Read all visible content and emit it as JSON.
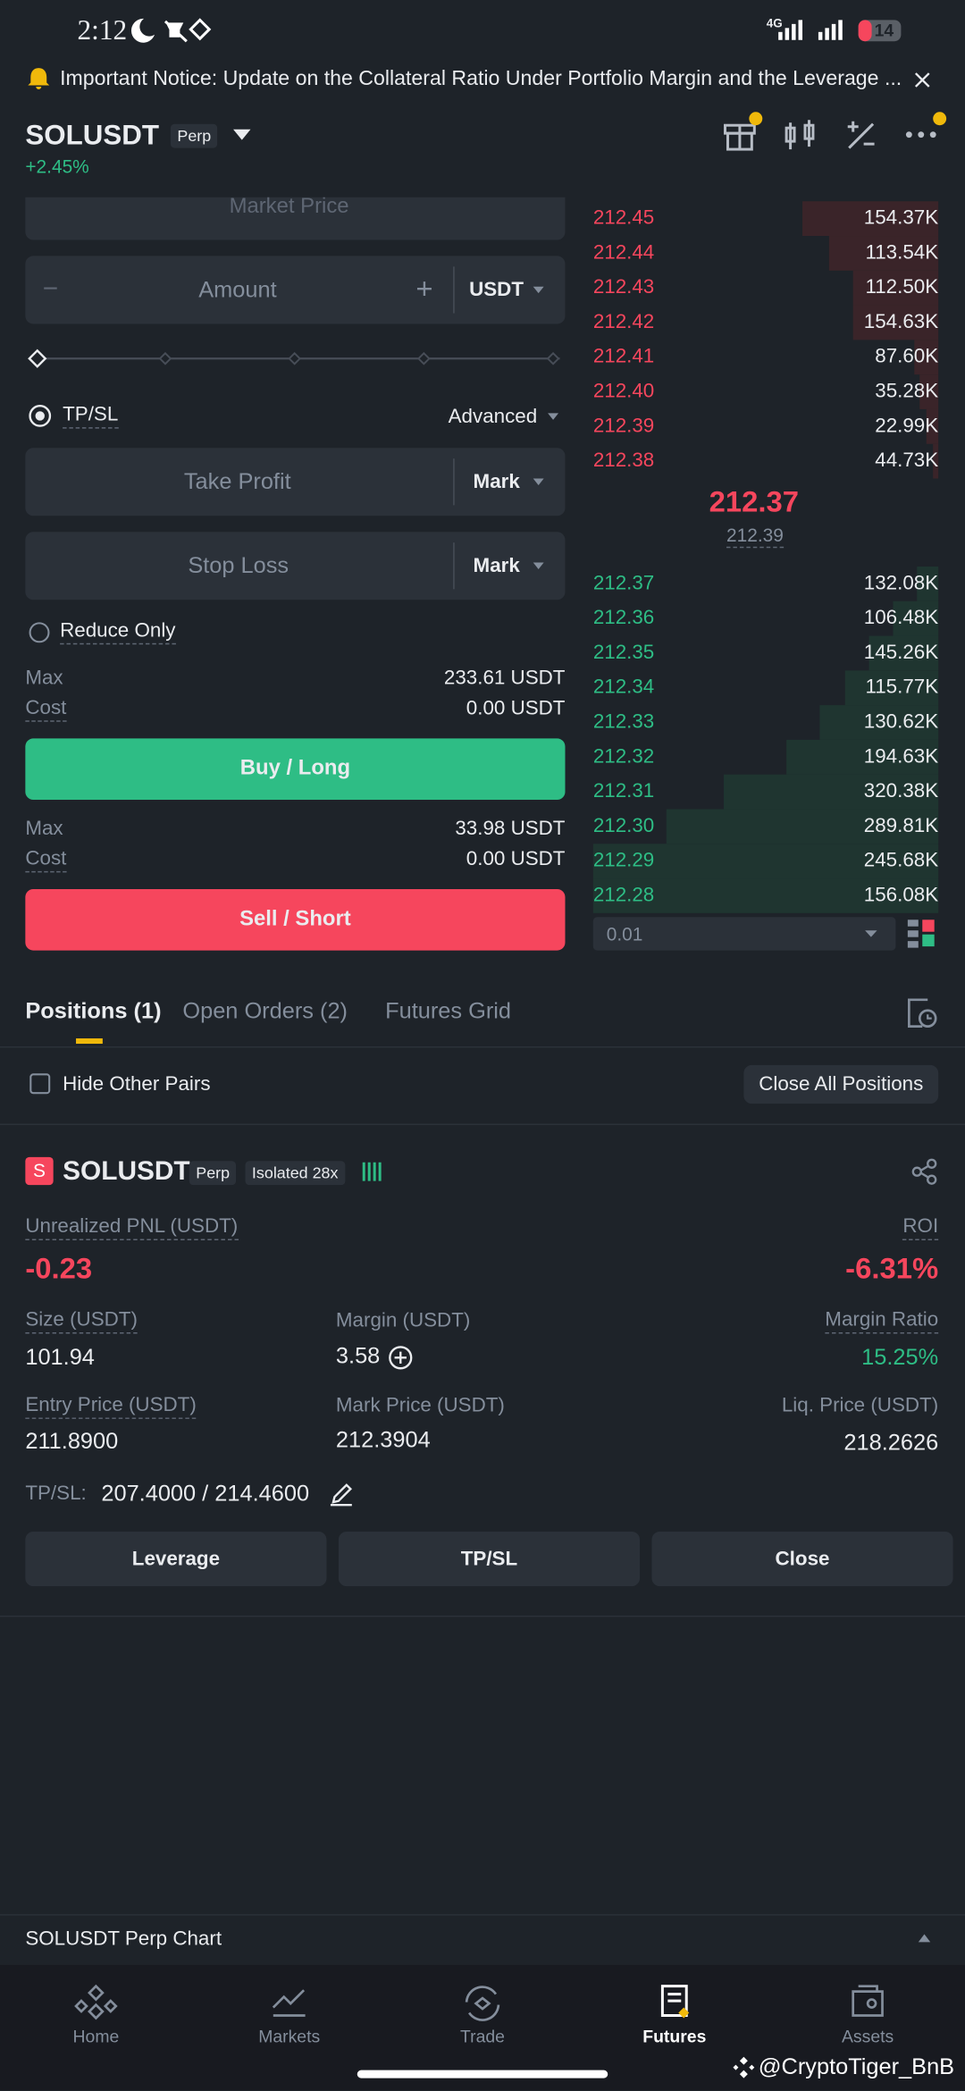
{
  "status_bar": {
    "time": "2:12",
    "network": "4G",
    "battery": "14"
  },
  "notice": {
    "text": "Important Notice: Update on the Collateral Ratio Under Portfolio Margin and the Leverage ..."
  },
  "header": {
    "symbol": "SOLUSDT",
    "badge": "Perp",
    "change": "+2.45%"
  },
  "order_form": {
    "price_type": "Market Price",
    "amount_placeholder": "Amount",
    "amount_unit": "USDT",
    "tpsl_label": "TP/SL",
    "advanced": "Advanced",
    "take_profit": "Take Profit",
    "take_profit_trigger": "Mark",
    "stop_loss": "Stop Loss",
    "stop_loss_trigger": "Mark",
    "reduce_only": "Reduce Only",
    "buy": {
      "max_label": "Max",
      "max_value": "233.61 USDT",
      "cost_label": "Cost",
      "cost_value": "0.00 USDT",
      "button": "Buy / Long"
    },
    "sell": {
      "max_label": "Max",
      "max_value": "33.98 USDT",
      "cost_label": "Cost",
      "cost_value": "0.00 USDT",
      "button": "Sell / Short"
    }
  },
  "order_book": {
    "asks": [
      {
        "price": "212.45",
        "amount": "154.37K"
      },
      {
        "price": "212.44",
        "amount": "113.54K"
      },
      {
        "price": "212.43",
        "amount": "112.50K"
      },
      {
        "price": "212.42",
        "amount": "154.63K"
      },
      {
        "price": "212.41",
        "amount": "87.60K"
      },
      {
        "price": "212.40",
        "amount": "35.28K"
      },
      {
        "price": "212.39",
        "amount": "22.99K"
      },
      {
        "price": "212.38",
        "amount": "44.73K"
      }
    ],
    "last_price": "212.37",
    "mark_price": "212.39",
    "bids": [
      {
        "price": "212.37",
        "amount": "132.08K"
      },
      {
        "price": "212.36",
        "amount": "106.48K"
      },
      {
        "price": "212.35",
        "amount": "145.26K"
      },
      {
        "price": "212.34",
        "amount": "115.77K"
      },
      {
        "price": "212.33",
        "amount": "130.62K"
      },
      {
        "price": "212.32",
        "amount": "194.63K"
      },
      {
        "price": "212.31",
        "amount": "320.38K"
      },
      {
        "price": "212.30",
        "amount": "289.81K"
      },
      {
        "price": "212.29",
        "amount": "245.68K"
      },
      {
        "price": "212.28",
        "amount": "156.08K"
      }
    ],
    "tick_size": "0.01"
  },
  "tabs": [
    "Positions (1)",
    "Open Orders (2)",
    "Futures Grid"
  ],
  "positions_toolbar": {
    "hide_other_pairs": "Hide Other Pairs",
    "close_all": "Close All Positions"
  },
  "position": {
    "icon": "S",
    "symbol": "SOLUSDT",
    "badge": "Perp",
    "margin_mode": "Isolated 28x",
    "pnl_label": "Unrealized PNL (USDT)",
    "pnl": "-0.23",
    "roi_label": "ROI",
    "roi": "-6.31%",
    "size_label": "Size (USDT)",
    "size": "101.94",
    "margin_label": "Margin (USDT)",
    "margin": "3.58",
    "margin_ratio_label": "Margin Ratio",
    "margin_ratio": "15.25%",
    "entry_label": "Entry Price (USDT)",
    "entry": "211.8900",
    "mark_label": "Mark Price (USDT)",
    "mark": "212.3904",
    "liq_label": "Liq. Price (USDT)",
    "liq": "218.2626",
    "tpsl_label": "TP/SL:",
    "tpsl_value": "207.4000 / 214.4600",
    "buttons": [
      "Leverage",
      "TP/SL",
      "Close"
    ]
  },
  "chart_bar": {
    "label": "SOLUSDT Perp Chart"
  },
  "nav": [
    "Home",
    "Markets",
    "Trade",
    "Futures",
    "Assets"
  ],
  "watermark": "@CryptoTiger_BnB"
}
